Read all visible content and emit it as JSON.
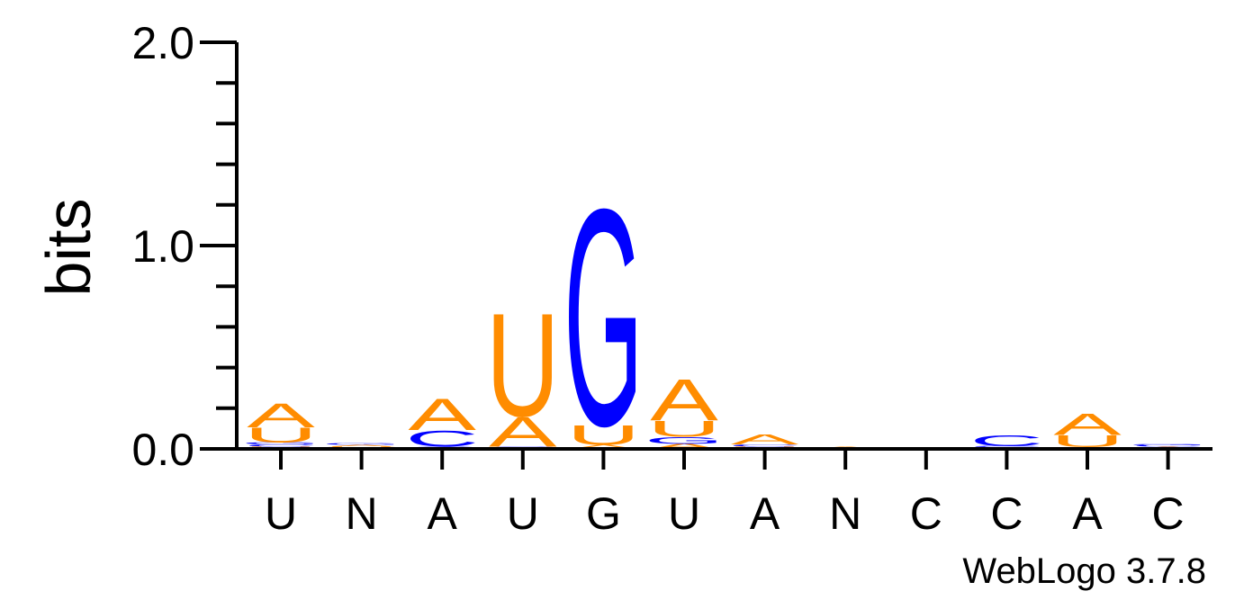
{
  "chart_data": {
    "type": "sequence-logo",
    "ylabel": "bits",
    "ylim": [
      0,
      2
    ],
    "yticks": [
      {
        "value": 0,
        "label": "0.0"
      },
      {
        "value": 1,
        "label": "1.0"
      },
      {
        "value": 2,
        "label": "2.0"
      }
    ],
    "consensus": [
      "U",
      "N",
      "A",
      "U",
      "G",
      "U",
      "A",
      "N",
      "C",
      "C",
      "A",
      "C"
    ],
    "colors": {
      "A": "#ff8c00",
      "U": "#ff8c00",
      "G": "#0000ff",
      "C": "#0000ff"
    },
    "columns": [
      [
        {
          "letter": "U",
          "bits": 0.01
        },
        {
          "letter": "C",
          "bits": 0.012
        },
        {
          "letter": "G",
          "bits": 0.01
        },
        {
          "letter": "U",
          "bits": 0.075
        },
        {
          "letter": "A",
          "bits": 0.12
        }
      ],
      [
        {
          "letter": "U",
          "bits": 0.012
        },
        {
          "letter": "A",
          "bits": 0.008
        },
        {
          "letter": "G",
          "bits": 0.008
        }
      ],
      [
        {
          "letter": "C",
          "bits": 0.012
        },
        {
          "letter": "C",
          "bits": 0.08
        },
        {
          "letter": "A",
          "bits": 0.16
        }
      ],
      [
        {
          "letter": "G",
          "bits": 0.012
        },
        {
          "letter": "A",
          "bits": 0.15
        },
        {
          "letter": "U",
          "bits": 0.52
        }
      ],
      [
        {
          "letter": "A",
          "bits": 0.02
        },
        {
          "letter": "U",
          "bits": 0.1
        },
        {
          "letter": "G",
          "bits": 1.09
        }
      ],
      [
        {
          "letter": "A",
          "bits": 0.025
        },
        {
          "letter": "G",
          "bits": 0.035
        },
        {
          "letter": "U",
          "bits": 0.08
        },
        {
          "letter": "A",
          "bits": 0.21
        }
      ],
      [
        {
          "letter": "U",
          "bits": 0.012
        },
        {
          "letter": "C",
          "bits": 0.01
        },
        {
          "letter": "A",
          "bits": 0.05
        }
      ],
      [
        {
          "letter": "A",
          "bits": 0.012
        }
      ],
      [
        {
          "letter": "A",
          "bits": 0.004
        }
      ],
      [
        {
          "letter": "A",
          "bits": 0.008
        },
        {
          "letter": "C",
          "bits": 0.006
        },
        {
          "letter": "C",
          "bits": 0.055
        }
      ],
      [
        {
          "letter": "G",
          "bits": 0.008
        },
        {
          "letter": "U",
          "bits": 0.06
        },
        {
          "letter": "A",
          "bits": 0.11
        }
      ],
      [
        {
          "letter": "A",
          "bits": 0.01
        },
        {
          "letter": "C",
          "bits": 0.008
        },
        {
          "letter": "G",
          "bits": 0.006
        }
      ]
    ]
  },
  "credit": "WebLogo 3.7.8"
}
